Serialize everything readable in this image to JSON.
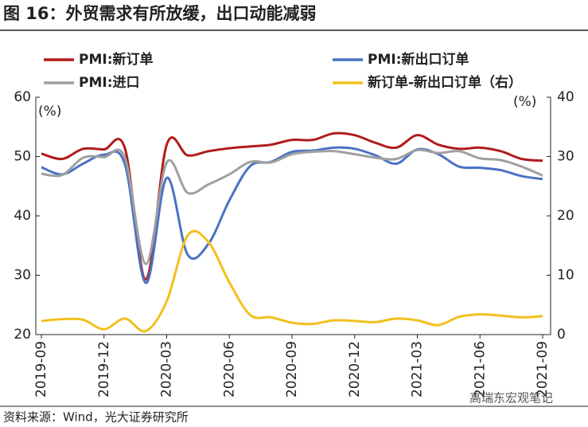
{
  "chart_data": {
    "type": "line",
    "title": "图 16：外贸需求有所放缓，出口动能减弱",
    "source": "资料来源：Wind，光大证券研究所",
    "watermark": "高瑞东宏观笔记",
    "y_unit": "(%)",
    "y2_unit": "(%)",
    "categories": [
      "2019-09",
      null,
      null,
      "2019-12",
      null,
      null,
      "2020-03",
      null,
      null,
      "2020-06",
      null,
      null,
      "2020-09",
      null,
      null,
      "2020-12",
      null,
      null,
      "2021-03",
      null,
      null,
      "2021-06",
      null,
      null,
      "2021-09"
    ],
    "series": [
      {
        "name": "PMI:新订单",
        "color": "#b01c1c",
        "values": [
          50.5,
          49.6,
          51.3,
          51.2,
          51.4,
          29.3,
          52.0,
          50.2,
          50.9,
          51.4,
          51.7,
          52.0,
          52.8,
          52.8,
          53.9,
          53.6,
          52.3,
          51.5,
          53.6,
          52.0,
          51.3,
          51.5,
          50.9,
          49.6,
          49.3
        ]
      },
      {
        "name": "PMI:新出口订单",
        "color": "#4a72c4",
        "values": [
          48.2,
          47.0,
          48.8,
          50.3,
          48.7,
          28.7,
          46.4,
          33.5,
          35.3,
          42.6,
          48.4,
          49.1,
          50.8,
          51.0,
          51.5,
          51.3,
          50.2,
          48.8,
          51.2,
          50.4,
          48.3,
          48.1,
          47.7,
          46.7,
          46.2
        ]
      },
      {
        "name": "PMI:进口",
        "color": "#a0a0a0",
        "values": [
          47.1,
          46.9,
          49.8,
          49.9,
          49.8,
          31.9,
          49.0,
          43.9,
          45.3,
          47.0,
          49.1,
          49.0,
          50.4,
          50.8,
          50.9,
          50.4,
          49.8,
          49.6,
          51.1,
          50.6,
          50.9,
          49.7,
          49.4,
          48.3,
          46.8
        ]
      },
      {
        "name": "新订单-新出口订单（右）",
        "color": "#f2c01e",
        "axis": "y2",
        "values": [
          2.3,
          2.6,
          2.5,
          0.9,
          2.7,
          0.6,
          5.6,
          16.7,
          15.6,
          8.8,
          3.3,
          2.9,
          2.0,
          1.8,
          2.4,
          2.3,
          2.1,
          2.7,
          2.4,
          1.6,
          3.0,
          3.4,
          3.2,
          2.9,
          3.1
        ]
      }
    ],
    "ylim": [
      20,
      60
    ],
    "yticks": [
      20,
      30,
      40,
      50,
      60
    ],
    "y2lim": [
      0,
      40
    ],
    "y2ticks": [
      0,
      10,
      20,
      30,
      40
    ]
  }
}
